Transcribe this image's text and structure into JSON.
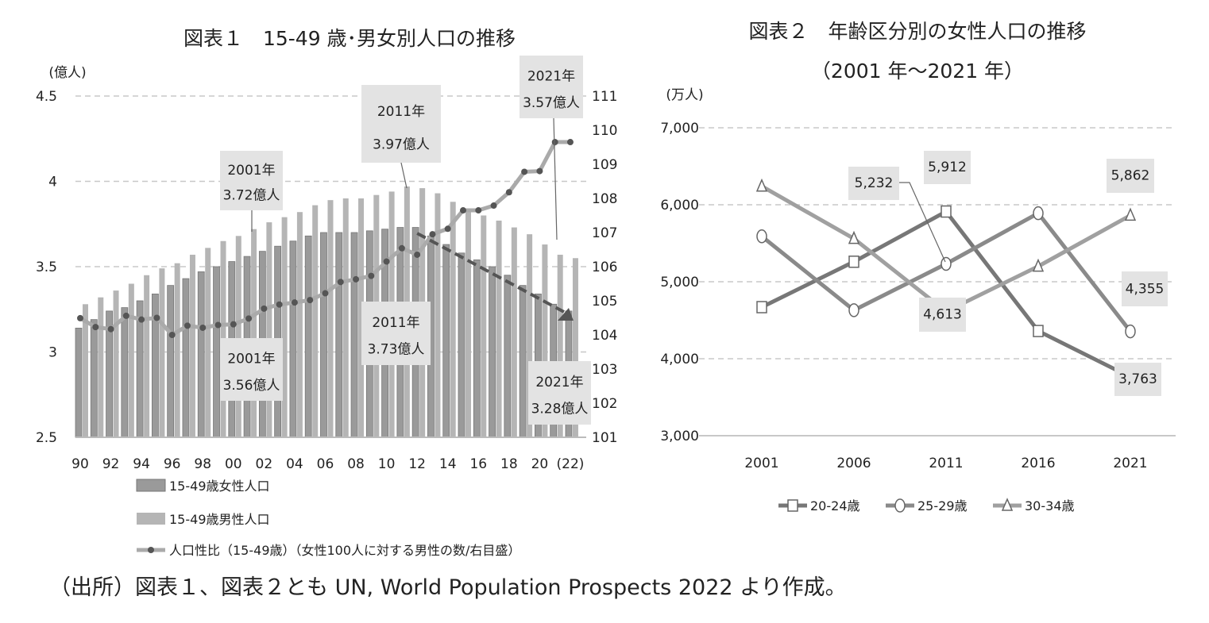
{
  "source_note": "（出所）図表１、図表２とも UN, World Population Prospects 2022 より作成。",
  "colors": {
    "female_bar": "#9a9a9a",
    "male_bar": "#b5b5b5",
    "ratio_line": "#aaaaaa",
    "ratio_marker": "#555555",
    "arrow": "#555555",
    "label_box": "#e3e3e3",
    "s20": "#777777",
    "s25": "#8a8a8a",
    "s30": "#a0a0a0",
    "grid": "#c8c8c8"
  },
  "chart_data": [
    {
      "type": "bar+line",
      "title": "図表１　15-49 歳･男女別人口の推移",
      "ylabel_left": "(億人)",
      "ylim_left": [
        2.5,
        4.5
      ],
      "yticks_left": [
        "2.5",
        "3",
        "3.5",
        "4",
        "4.5"
      ],
      "ylim_right": [
        101,
        111
      ],
      "yticks_right": [
        "101",
        "102",
        "103",
        "104",
        "105",
        "106",
        "107",
        "108",
        "109",
        "110",
        "111"
      ],
      "xtick_labels": [
        "90",
        "92",
        "94",
        "96",
        "98",
        "00",
        "02",
        "04",
        "06",
        "08",
        "10",
        "12",
        "14",
        "16",
        "18",
        "20",
        "(22)"
      ],
      "x": [
        1990,
        1991,
        1992,
        1993,
        1994,
        1995,
        1996,
        1997,
        1998,
        1999,
        2000,
        2001,
        2002,
        2003,
        2004,
        2005,
        2006,
        2007,
        2008,
        2009,
        2010,
        2011,
        2012,
        2013,
        2014,
        2015,
        2016,
        2017,
        2018,
        2019,
        2020,
        2021,
        2022
      ],
      "series": [
        {
          "name": "15-49歳女性人口",
          "axis": "left",
          "kind": "bar",
          "values": [
            3.14,
            3.19,
            3.24,
            3.26,
            3.3,
            3.34,
            3.39,
            3.43,
            3.47,
            3.5,
            3.53,
            3.56,
            3.59,
            3.62,
            3.65,
            3.68,
            3.7,
            3.7,
            3.7,
            3.71,
            3.72,
            3.73,
            3.73,
            3.68,
            3.63,
            3.58,
            3.54,
            3.5,
            3.45,
            3.39,
            3.34,
            3.28,
            3.24
          ]
        },
        {
          "name": "15-49歳男性人口",
          "axis": "left",
          "kind": "bar",
          "values": [
            3.28,
            3.32,
            3.36,
            3.4,
            3.45,
            3.49,
            3.52,
            3.57,
            3.61,
            3.65,
            3.68,
            3.72,
            3.76,
            3.79,
            3.82,
            3.86,
            3.89,
            3.9,
            3.9,
            3.92,
            3.94,
            3.97,
            3.96,
            3.93,
            3.88,
            3.83,
            3.8,
            3.77,
            3.73,
            3.69,
            3.63,
            3.57,
            3.55
          ]
        },
        {
          "name": "人口性比（15-49歳）（女性100人に対する男性の数/右目盛）",
          "axis": "right",
          "kind": "line",
          "values": [
            104.49,
            104.23,
            104.17,
            104.56,
            104.45,
            104.5,
            104.0,
            104.27,
            104.21,
            104.29,
            104.31,
            104.48,
            104.77,
            104.89,
            104.95,
            105.02,
            105.22,
            105.55,
            105.63,
            105.73,
            106.15,
            106.54,
            106.35,
            106.95,
            107.11,
            107.65,
            107.65,
            107.79,
            108.18,
            108.78,
            108.8,
            109.65,
            109.65
          ]
        }
      ],
      "annotations": [
        {
          "line1": "2001年",
          "line2": "3.72億人"
        },
        {
          "line1": "2011年",
          "line2": "3.97億人"
        },
        {
          "line1": "2021年",
          "line2": "3.57億人"
        },
        {
          "line1": "2001年",
          "line2": "3.56億人"
        },
        {
          "line1": "2011年",
          "line2": "3.73億人"
        },
        {
          "line1": "2021年",
          "line2": "3.28億人"
        }
      ],
      "trend_arrow": {
        "from_year": 2012,
        "to_year": 2022,
        "style": "dashed"
      },
      "legend_placement": "bottom",
      "grid": true
    },
    {
      "type": "line",
      "title": "図表２　年齢区分別の女性人口の推移",
      "subtitle": "（2001 年～2021 年）",
      "ylabel": "(万人)",
      "ylim": [
        3000,
        7000
      ],
      "yticks": [
        "3,000",
        "4,000",
        "5,000",
        "6,000",
        "7,000"
      ],
      "categories": [
        "2001",
        "2006",
        "2011",
        "2016",
        "2021"
      ],
      "series": [
        {
          "name": "20-24歳",
          "marker": "square",
          "values": [
            4670,
            5260,
            5912,
            4360,
            3763
          ]
        },
        {
          "name": "25-29歳",
          "marker": "circle",
          "values": [
            5590,
            4630,
            5232,
            5890,
            4355
          ]
        },
        {
          "name": "30-34歳",
          "marker": "triangle",
          "values": [
            6240,
            5560,
            4613,
            5200,
            5862
          ]
        }
      ],
      "data_labels": [
        "5,232",
        "5,912",
        "5,862",
        "4,613",
        "4,355",
        "3,763"
      ],
      "legend_placement": "bottom",
      "grid": true
    }
  ]
}
